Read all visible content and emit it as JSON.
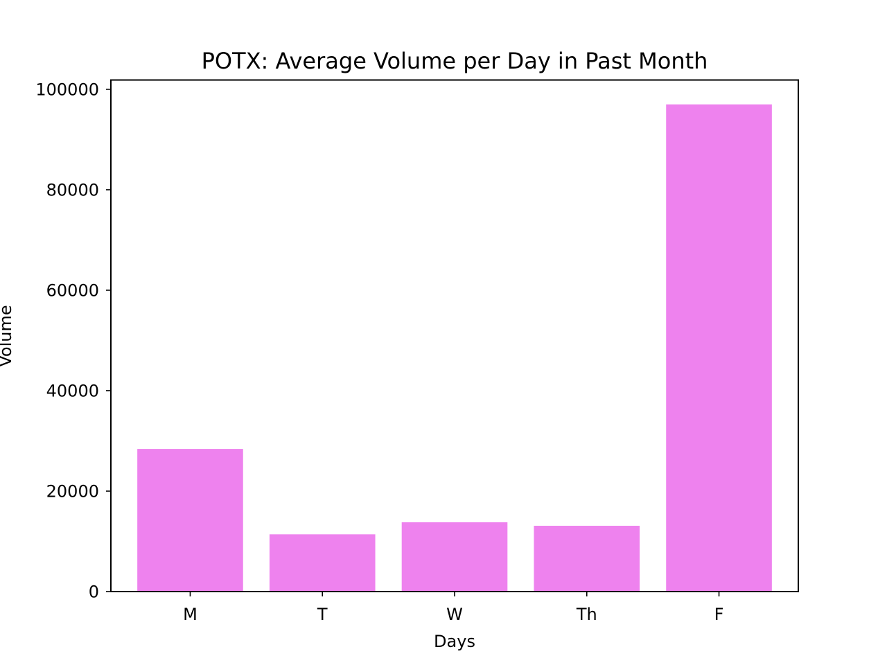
{
  "chart_data": {
    "type": "bar",
    "title": "POTX: Average Volume per Day in Past Month",
    "xlabel": "Days",
    "ylabel": "Volume",
    "categories": [
      "M",
      "T",
      "W",
      "Th",
      "F"
    ],
    "values": [
      28400,
      11400,
      13800,
      13100,
      97000
    ],
    "ylim": [
      0,
      101850
    ],
    "yticks": [
      0,
      20000,
      40000,
      60000,
      80000,
      100000
    ],
    "ytick_labels": [
      "0",
      "20000",
      "40000",
      "60000",
      "80000",
      "100000"
    ],
    "bar_color": "#ee82ee",
    "grid": false,
    "legend": "none"
  }
}
